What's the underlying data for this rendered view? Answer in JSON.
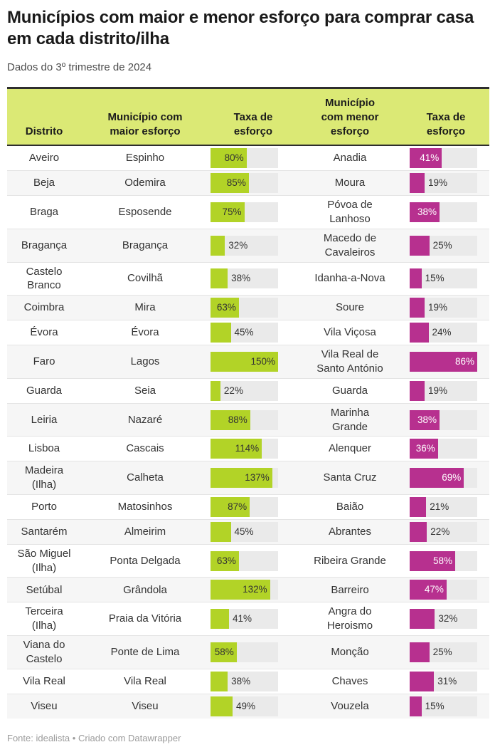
{
  "title": "Municípios com maior e menor esforço para comprar casa em cada distrito/ilha",
  "subtitle": "Dados do 3º trimestre de 2024",
  "footer": "Fonte: idealista • Criado com Datawrapper",
  "colors": {
    "header_bg": "#dbe975",
    "bar_high": "#b2d327",
    "bar_low": "#b7308f",
    "track": "#eaeaea",
    "label_dark": "#333333",
    "label_light": "#ffffff"
  },
  "chart_data": {
    "type": "table",
    "columns": [
      "Distrito",
      "Município com\nmaior esforço",
      "Taxa de\nesforço",
      "Município\ncom menor\nesforço",
      "Taxa de\nesforço"
    ],
    "unit": "%",
    "bar_max_high": 150,
    "bar_max_low": 86,
    "rows": [
      {
        "distrito": "Aveiro",
        "mun_maior": "Espinho",
        "taxa_maior": 80,
        "mun_menor": "Anadia",
        "taxa_menor": 41
      },
      {
        "distrito": "Beja",
        "mun_maior": "Odemira",
        "taxa_maior": 85,
        "mun_menor": "Moura",
        "taxa_menor": 19
      },
      {
        "distrito": "Braga",
        "mun_maior": "Esposende",
        "taxa_maior": 75,
        "mun_menor": "Póvoa de\nLanhoso",
        "taxa_menor": 38
      },
      {
        "distrito": "Bragança",
        "mun_maior": "Bragança",
        "taxa_maior": 32,
        "mun_menor": "Macedo de\nCavaleiros",
        "taxa_menor": 25
      },
      {
        "distrito": "Castelo\nBranco",
        "mun_maior": "Covilhã",
        "taxa_maior": 38,
        "mun_menor": "Idanha-a-Nova",
        "taxa_menor": 15
      },
      {
        "distrito": "Coimbra",
        "mun_maior": "Mira",
        "taxa_maior": 63,
        "mun_menor": "Soure",
        "taxa_menor": 19
      },
      {
        "distrito": "Évora",
        "mun_maior": "Évora",
        "taxa_maior": 45,
        "mun_menor": "Vila Viçosa",
        "taxa_menor": 24
      },
      {
        "distrito": "Faro",
        "mun_maior": "Lagos",
        "taxa_maior": 150,
        "mun_menor": "Vila Real de\nSanto António",
        "taxa_menor": 86
      },
      {
        "distrito": "Guarda",
        "mun_maior": "Seia",
        "taxa_maior": 22,
        "mun_menor": "Guarda",
        "taxa_menor": 19
      },
      {
        "distrito": "Leiria",
        "mun_maior": "Nazaré",
        "taxa_maior": 88,
        "mun_menor": "Marinha\nGrande",
        "taxa_menor": 38
      },
      {
        "distrito": "Lisboa",
        "mun_maior": "Cascais",
        "taxa_maior": 114,
        "mun_menor": "Alenquer",
        "taxa_menor": 36
      },
      {
        "distrito": "Madeira\n(Ilha)",
        "mun_maior": "Calheta",
        "taxa_maior": 137,
        "mun_menor": "Santa Cruz",
        "taxa_menor": 69
      },
      {
        "distrito": "Porto",
        "mun_maior": "Matosinhos",
        "taxa_maior": 87,
        "mun_menor": "Baião",
        "taxa_menor": 21
      },
      {
        "distrito": "Santarém",
        "mun_maior": "Almeirim",
        "taxa_maior": 45,
        "mun_menor": "Abrantes",
        "taxa_menor": 22
      },
      {
        "distrito": "São Miguel\n(Ilha)",
        "mun_maior": "Ponta Delgada",
        "taxa_maior": 63,
        "mun_menor": "Ribeira Grande",
        "taxa_menor": 58
      },
      {
        "distrito": "Setúbal",
        "mun_maior": "Grândola",
        "taxa_maior": 132,
        "mun_menor": "Barreiro",
        "taxa_menor": 47
      },
      {
        "distrito": "Terceira\n(Ilha)",
        "mun_maior": "Praia da Vitória",
        "taxa_maior": 41,
        "mun_menor": "Angra do\nHeroismo",
        "taxa_menor": 32
      },
      {
        "distrito": "Viana do\nCastelo",
        "mun_maior": "Ponte de Lima",
        "taxa_maior": 58,
        "mun_menor": "Monção",
        "taxa_menor": 25
      },
      {
        "distrito": "Vila Real",
        "mun_maior": "Vila Real",
        "taxa_maior": 38,
        "mun_menor": "Chaves",
        "taxa_menor": 31
      },
      {
        "distrito": "Viseu",
        "mun_maior": "Viseu",
        "taxa_maior": 49,
        "mun_menor": "Vouzela",
        "taxa_menor": 15
      }
    ]
  }
}
